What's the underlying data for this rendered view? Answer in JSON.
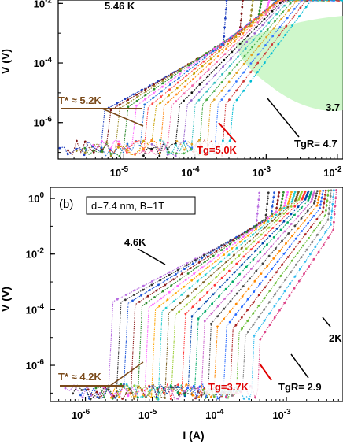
{
  "chart_data": [
    {
      "type": "scatter",
      "panel": "a",
      "xscale": "log",
      "yscale": "log",
      "xlim": [
        1.2e-06,
        0.012
      ],
      "ylim": [
        6e-08,
        0.013
      ],
      "xticks": [
        "10^-5",
        "10^-4",
        "10^-3",
        "10^-2"
      ],
      "yticks": [
        "10^-2",
        "10^-4",
        "10^-6"
      ],
      "ylabel": "V (V)",
      "annotations": {
        "top_label": "5.46 K",
        "tstar": "T* ≈ 5.2K",
        "tg": "Tg=5.0K",
        "tgr": "TgR= 4.7",
        "right_label": "3.7"
      },
      "shaded_region": "critical crossover band (light green)",
      "series_count": 18,
      "series_colors": [
        "#1f3fbf",
        "#7a1111",
        "#9b8a2a",
        "#2e8b2e",
        "#ff66ff",
        "#1d6fd8",
        "#ff4444",
        "#c8a000",
        "#ff8c1a",
        "#f266aa",
        "#111111",
        "#9966cc",
        "#2bbbbb",
        "#44aa44",
        "#e0a020",
        "#3377ff",
        "#cc3333",
        "#00bcd4"
      ]
    },
    {
      "type": "scatter",
      "panel": "b",
      "panel_label": "(b)",
      "box_label": "d=7.4 nm, B=1T",
      "xscale": "log",
      "yscale": "log",
      "xlim": [
        3e-07,
        0.007
      ],
      "ylim": [
        5e-08,
        2.5
      ],
      "xticks": [
        "10^-6",
        "10^-5",
        "10^-4",
        "10^-3"
      ],
      "yticks": [
        "10^0",
        "10^-2",
        "10^-4",
        "10^-6"
      ],
      "xlabel": "I (A)",
      "ylabel": "V (V)",
      "annotations": {
        "top_label": "4.6K",
        "tstar": "T* ≈ 4.2K",
        "tg": "Tg=3.7K",
        "tgr": "TgR= 2.9",
        "right_label": "2K"
      },
      "series_count": 22,
      "series_colors": [
        "#b76be0",
        "#333333",
        "#1d55d8",
        "#8b1a1a",
        "#2e8b2e",
        "#ff66ff",
        "#ffa500",
        "#22cccc",
        "#7a5c1e",
        "#9acd32",
        "#ff3333",
        "#0044aa",
        "#00aa66",
        "#cc66cc",
        "#444444",
        "#ff8800",
        "#2266ff",
        "#aa2222",
        "#66bb33",
        "#7f7f7f",
        "#33bbee",
        "#dd4488"
      ]
    }
  ]
}
